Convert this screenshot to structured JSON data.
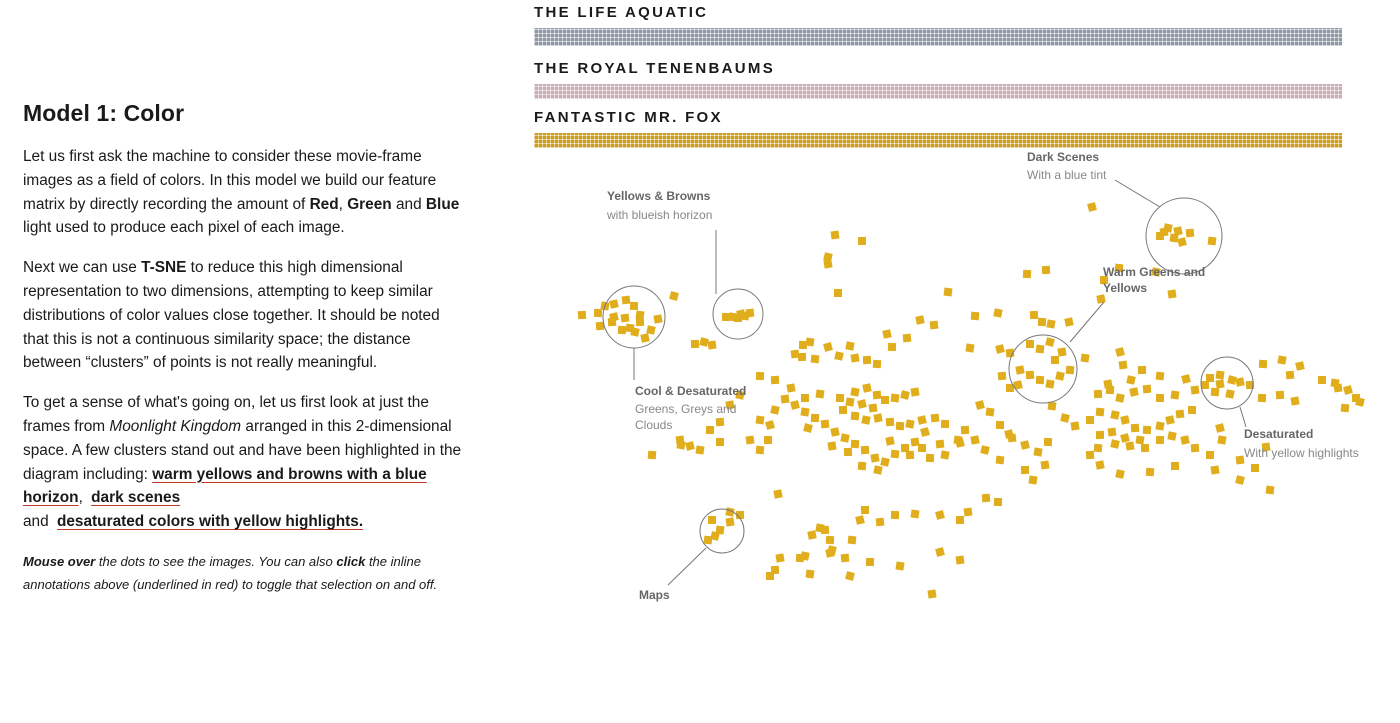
{
  "section": {
    "title": "Model 1: Color",
    "p1": {
      "a": "Let us first ask the machine to consider these movie-frame images as a field of colors. In this model we build our feature matrix by directly recording the amount of ",
      "red": "Red",
      "comma": ", ",
      "green": "Green",
      "and": " and ",
      "blue": "Blue",
      "b": " light used to produce each pixel of each image."
    },
    "p2": {
      "a": "Next we can use ",
      "tsne": "T-SNE",
      "b": " to reduce this high dimensional representation to two dimensions, attempting to keep similar distributions of color values close together. It should be noted that this is not a continuous similarity space; the distance between “clusters” of points is not really meaningful."
    },
    "p3": {
      "a": "To get a sense of what's going on, let us first look at just the frames from ",
      "movie": "Moonlight Kingdom",
      "b": " arranged in this 2-dimensional space. A few clusters stand out and have been highlighted in the diagram including: ",
      "link1": "warm yellows and browns with a blue horizon",
      "sep1": ", ",
      "link2": "dark scenes",
      "and": " and ",
      "link3": "desaturated colors with yellow highlights."
    },
    "note": {
      "b1": "Mouse over",
      "t1": " the dots to see the images. You can also ",
      "b2": "click",
      "t2": " the inline annotations above (underlined in red) to toggle that selection on and off."
    }
  },
  "movies": [
    {
      "title": "THE LIFE AQUATIC",
      "color": "#8f97a7"
    },
    {
      "title": "THE ROYAL TENENBAUMS",
      "color": "#c9aeb4"
    },
    {
      "title": "FANTASTIC MR. FOX",
      "color": "#cf9c1a"
    }
  ],
  "chart_data": {
    "type": "scatter",
    "marker_color": "#e0ad1c",
    "axes": "none",
    "grid": false,
    "annotations": [
      {
        "title": "Dark Scenes",
        "subtitle": "With a blue tint"
      },
      {
        "title": "Yellows & Browns",
        "subtitle": "with blueish horizon"
      },
      {
        "title": "Warm Greens and",
        "subtitle": "Yellows",
        "subtitle_bold": true
      },
      {
        "title": "Cool & Desaturated",
        "subtitle": "Greens, Greys and",
        "subtitle2": "Clouds"
      },
      {
        "title": "Desaturated",
        "subtitle": "With yellow highlights"
      },
      {
        "title": "Maps",
        "subtitle": ""
      }
    ],
    "points": [
      [
        1092,
        207
      ],
      [
        835,
        235
      ],
      [
        862,
        241
      ],
      [
        1212,
        241
      ],
      [
        828,
        257
      ],
      [
        828,
        264
      ],
      [
        1046,
        270
      ],
      [
        1027,
        274
      ],
      [
        1168,
        228
      ],
      [
        1178,
        231
      ],
      [
        1190,
        233
      ],
      [
        1160,
        236
      ],
      [
        1174,
        238
      ],
      [
        1182,
        242
      ],
      [
        1164,
        232
      ],
      [
        838,
        293
      ],
      [
        948,
        292
      ],
      [
        674,
        296
      ],
      [
        1172,
        294
      ],
      [
        1104,
        280
      ],
      [
        1119,
        268
      ],
      [
        1156,
        272
      ],
      [
        1101,
        299
      ],
      [
        582,
        315
      ],
      [
        598,
        313
      ],
      [
        605,
        306
      ],
      [
        614,
        304
      ],
      [
        626,
        300
      ],
      [
        634,
        306
      ],
      [
        640,
        315
      ],
      [
        614,
        317
      ],
      [
        625,
        318
      ],
      [
        640,
        322
      ],
      [
        630,
        328
      ],
      [
        651,
        330
      ],
      [
        658,
        319
      ],
      [
        612,
        322
      ],
      [
        622,
        330
      ],
      [
        635,
        332
      ],
      [
        645,
        338
      ],
      [
        600,
        326
      ],
      [
        726,
        317
      ],
      [
        733,
        317
      ],
      [
        741,
        314
      ],
      [
        750,
        313
      ],
      [
        738,
        318
      ],
      [
        745,
        316
      ],
      [
        704,
        342
      ],
      [
        712,
        345
      ],
      [
        695,
        344
      ],
      [
        975,
        316
      ],
      [
        998,
        313
      ],
      [
        920,
        320
      ],
      [
        1034,
        315
      ],
      [
        1042,
        322
      ],
      [
        1051,
        324
      ],
      [
        1069,
        322
      ],
      [
        934,
        325
      ],
      [
        803,
        345
      ],
      [
        810,
        342
      ],
      [
        828,
        347
      ],
      [
        795,
        354
      ],
      [
        802,
        357
      ],
      [
        815,
        359
      ],
      [
        839,
        356
      ],
      [
        855,
        358
      ],
      [
        867,
        360
      ],
      [
        877,
        364
      ],
      [
        850,
        346
      ],
      [
        887,
        334
      ],
      [
        907,
        338
      ],
      [
        892,
        347
      ],
      [
        970,
        348
      ],
      [
        1000,
        349
      ],
      [
        1010,
        353
      ],
      [
        1030,
        344
      ],
      [
        1040,
        349
      ],
      [
        1050,
        342
      ],
      [
        1062,
        352
      ],
      [
        1055,
        360
      ],
      [
        1070,
        370
      ],
      [
        1060,
        376
      ],
      [
        1020,
        370
      ],
      [
        1030,
        375
      ],
      [
        1040,
        380
      ],
      [
        1050,
        384
      ],
      [
        1018,
        385
      ],
      [
        1002,
        376
      ],
      [
        1010,
        388
      ],
      [
        1085,
        358
      ],
      [
        1120,
        352
      ],
      [
        1123,
        365
      ],
      [
        1142,
        370
      ],
      [
        1160,
        376
      ],
      [
        1131,
        380
      ],
      [
        1108,
        384
      ],
      [
        1098,
        394
      ],
      [
        1110,
        390
      ],
      [
        1120,
        398
      ],
      [
        1134,
        392
      ],
      [
        1147,
        389
      ],
      [
        1160,
        398
      ],
      [
        1175,
        395
      ],
      [
        1186,
        379
      ],
      [
        1195,
        390
      ],
      [
        1210,
        378
      ],
      [
        1220,
        375
      ],
      [
        1232,
        380
      ],
      [
        1220,
        384
      ],
      [
        1205,
        385
      ],
      [
        1215,
        392
      ],
      [
        1230,
        394
      ],
      [
        1240,
        382
      ],
      [
        1250,
        385
      ],
      [
        1263,
        364
      ],
      [
        1282,
        360
      ],
      [
        1300,
        366
      ],
      [
        1290,
        375
      ],
      [
        1322,
        380
      ],
      [
        1335,
        383
      ],
      [
        1348,
        390
      ],
      [
        1338,
        388
      ],
      [
        1356,
        398
      ],
      [
        1345,
        408
      ],
      [
        1360,
        402
      ],
      [
        1295,
        401
      ],
      [
        1280,
        395
      ],
      [
        1262,
        398
      ],
      [
        855,
        392
      ],
      [
        867,
        388
      ],
      [
        877,
        395
      ],
      [
        840,
        398
      ],
      [
        850,
        402
      ],
      [
        862,
        404
      ],
      [
        873,
        408
      ],
      [
        885,
        400
      ],
      [
        895,
        398
      ],
      [
        905,
        395
      ],
      [
        915,
        392
      ],
      [
        843,
        410
      ],
      [
        855,
        416
      ],
      [
        866,
        420
      ],
      [
        878,
        418
      ],
      [
        890,
        422
      ],
      [
        900,
        426
      ],
      [
        910,
        424
      ],
      [
        922,
        420
      ],
      [
        935,
        418
      ],
      [
        945,
        424
      ],
      [
        958,
        440
      ],
      [
        925,
        432
      ],
      [
        915,
        442
      ],
      [
        905,
        448
      ],
      [
        895,
        454
      ],
      [
        885,
        462
      ],
      [
        875,
        458
      ],
      [
        865,
        450
      ],
      [
        855,
        444
      ],
      [
        845,
        438
      ],
      [
        835,
        432
      ],
      [
        825,
        424
      ],
      [
        815,
        418
      ],
      [
        805,
        412
      ],
      [
        795,
        405
      ],
      [
        785,
        399
      ],
      [
        805,
        398
      ],
      [
        820,
        394
      ],
      [
        808,
        428
      ],
      [
        832,
        446
      ],
      [
        848,
        452
      ],
      [
        862,
        466
      ],
      [
        878,
        470
      ],
      [
        890,
        441
      ],
      [
        910,
        455
      ],
      [
        930,
        458
      ],
      [
        945,
        455
      ],
      [
        960,
        443
      ],
      [
        940,
        444
      ],
      [
        922,
        448
      ],
      [
        760,
        420
      ],
      [
        770,
        425
      ],
      [
        750,
        440
      ],
      [
        768,
        440
      ],
      [
        760,
        450
      ],
      [
        775,
        410
      ],
      [
        791,
        388
      ],
      [
        775,
        380
      ],
      [
        760,
        376
      ],
      [
        740,
        395
      ],
      [
        730,
        405
      ],
      [
        720,
        422
      ],
      [
        710,
        430
      ],
      [
        700,
        450
      ],
      [
        690,
        446
      ],
      [
        680,
        440
      ],
      [
        720,
        442
      ],
      [
        1052,
        406
      ],
      [
        1065,
        418
      ],
      [
        1075,
        426
      ],
      [
        1090,
        420
      ],
      [
        1100,
        412
      ],
      [
        1115,
        415
      ],
      [
        1125,
        420
      ],
      [
        1135,
        428
      ],
      [
        1147,
        430
      ],
      [
        1160,
        426
      ],
      [
        1170,
        420
      ],
      [
        1180,
        414
      ],
      [
        1192,
        410
      ],
      [
        1140,
        440
      ],
      [
        1125,
        438
      ],
      [
        1112,
        432
      ],
      [
        1100,
        435
      ],
      [
        1098,
        448
      ],
      [
        1115,
        444
      ],
      [
        1130,
        446
      ],
      [
        1145,
        448
      ],
      [
        1160,
        440
      ],
      [
        1172,
        436
      ],
      [
        1185,
        440
      ],
      [
        1195,
        448
      ],
      [
        1210,
        455
      ],
      [
        1222,
        440
      ],
      [
        1220,
        428
      ],
      [
        1240,
        460
      ],
      [
        1255,
        468
      ],
      [
        1270,
        490
      ],
      [
        1240,
        480
      ],
      [
        1215,
        470
      ],
      [
        1175,
        466
      ],
      [
        1150,
        472
      ],
      [
        1120,
        474
      ],
      [
        1100,
        465
      ],
      [
        1090,
        455
      ],
      [
        1048,
        442
      ],
      [
        1038,
        452
      ],
      [
        1025,
        445
      ],
      [
        1012,
        438
      ],
      [
        1000,
        425
      ],
      [
        990,
        412
      ],
      [
        980,
        405
      ],
      [
        1045,
        465
      ],
      [
        1025,
        470
      ],
      [
        1000,
        460
      ],
      [
        985,
        450
      ],
      [
        975,
        440
      ],
      [
        965,
        430
      ],
      [
        652,
        455
      ],
      [
        681,
        445
      ],
      [
        778,
        494
      ],
      [
        986,
        498
      ],
      [
        998,
        502
      ],
      [
        1033,
        480
      ],
      [
        1009,
        434
      ],
      [
        1266,
        447
      ],
      [
        712,
        520
      ],
      [
        720,
        530
      ],
      [
        715,
        536
      ],
      [
        730,
        522
      ],
      [
        740,
        515
      ],
      [
        708,
        540
      ],
      [
        730,
        512
      ],
      [
        812,
        535
      ],
      [
        825,
        530
      ],
      [
        830,
        540
      ],
      [
        820,
        528
      ],
      [
        860,
        520
      ],
      [
        880,
        522
      ],
      [
        895,
        515
      ],
      [
        915,
        514
      ],
      [
        940,
        515
      ],
      [
        968,
        512
      ],
      [
        960,
        520
      ],
      [
        852,
        540
      ],
      [
        832,
        550
      ],
      [
        780,
        558
      ],
      [
        775,
        570
      ],
      [
        800,
        558
      ],
      [
        805,
        556
      ],
      [
        830,
        553
      ],
      [
        845,
        558
      ],
      [
        870,
        562
      ],
      [
        900,
        566
      ],
      [
        940,
        552
      ],
      [
        960,
        560
      ],
      [
        770,
        576
      ],
      [
        810,
        574
      ],
      [
        850,
        576
      ],
      [
        932,
        594
      ],
      [
        865,
        510
      ]
    ]
  }
}
